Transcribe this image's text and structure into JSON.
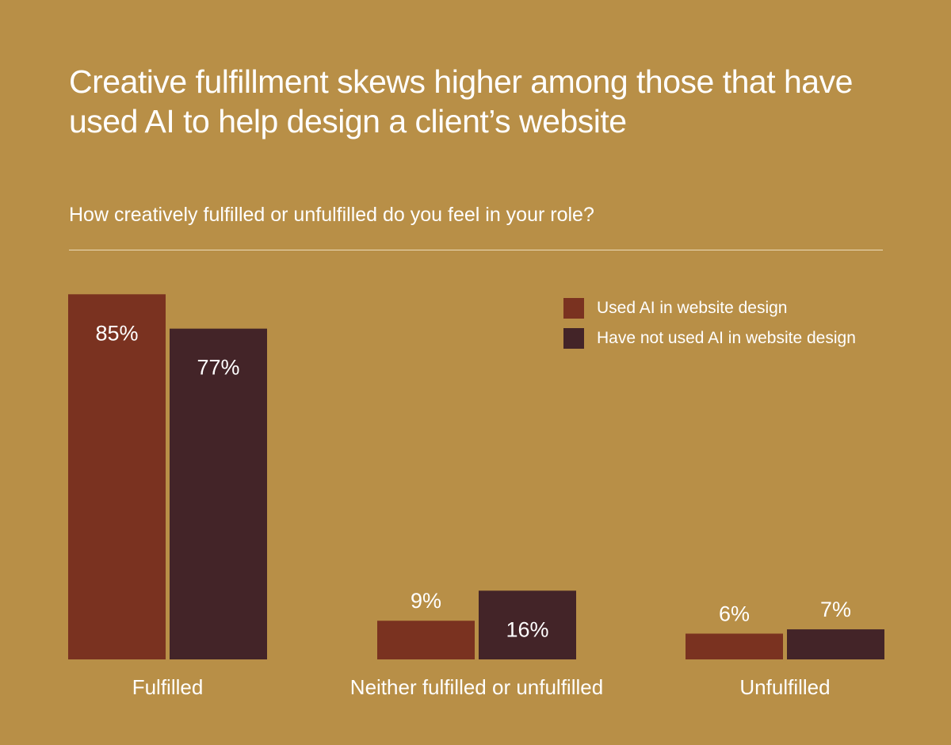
{
  "title": "Creative fulfillment skews higher among those that have used AI to help design a client’s website",
  "subtitle": "How creatively fulfilled or unfulfilled do you feel in your role?",
  "colors": {
    "background": "#b88f47",
    "used_ai": "#7a3220",
    "not_used_ai": "#432428",
    "rule": "#ecdcbb"
  },
  "chart_data": {
    "type": "bar",
    "categories": [
      "Fulfilled",
      "Neither fulfilled or unfulfilled",
      "Unfulfilled"
    ],
    "series": [
      {
        "name": "Used AI in website design",
        "values": [
          85,
          9,
          6
        ],
        "labels": [
          "85%",
          "9%",
          "6%"
        ],
        "color": "#7a3220"
      },
      {
        "name": "Have not used AI in website design",
        "values": [
          77,
          16,
          7
        ],
        "labels": [
          "77%",
          "16%",
          "7%"
        ],
        "color": "#432428"
      }
    ],
    "ylim": [
      0,
      100
    ],
    "unit": "%",
    "grid": false,
    "legend_position": "top-right"
  }
}
